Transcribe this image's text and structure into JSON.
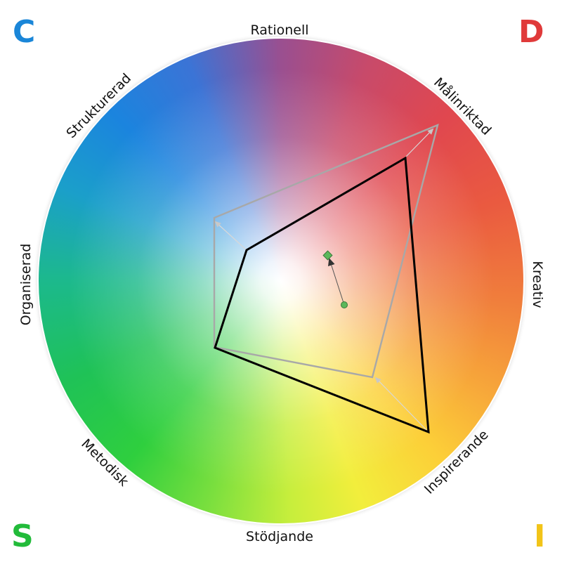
{
  "corners": {
    "c": {
      "letter": "C",
      "color": "#1a86d8"
    },
    "d": {
      "letter": "D",
      "color": "#e03a3a"
    },
    "s": {
      "letter": "S",
      "color": "#22bb3a"
    },
    "i": {
      "letter": "I",
      "color": "#f2c418"
    }
  },
  "axes": {
    "rationell": "Rationell",
    "malinriktad": "Målinriktad",
    "kreativ": "Kreativ",
    "inspirerande": "Inspirerande",
    "stodjande": "Stödjande",
    "metodisk": "Metodisk",
    "organiserad": "Organiserad",
    "strukturerad": "Strukturerad"
  },
  "colors": {
    "profile_primary": "#000000",
    "profile_secondary": "#a8a8a8",
    "marker_fill": "#5bb85b"
  }
}
